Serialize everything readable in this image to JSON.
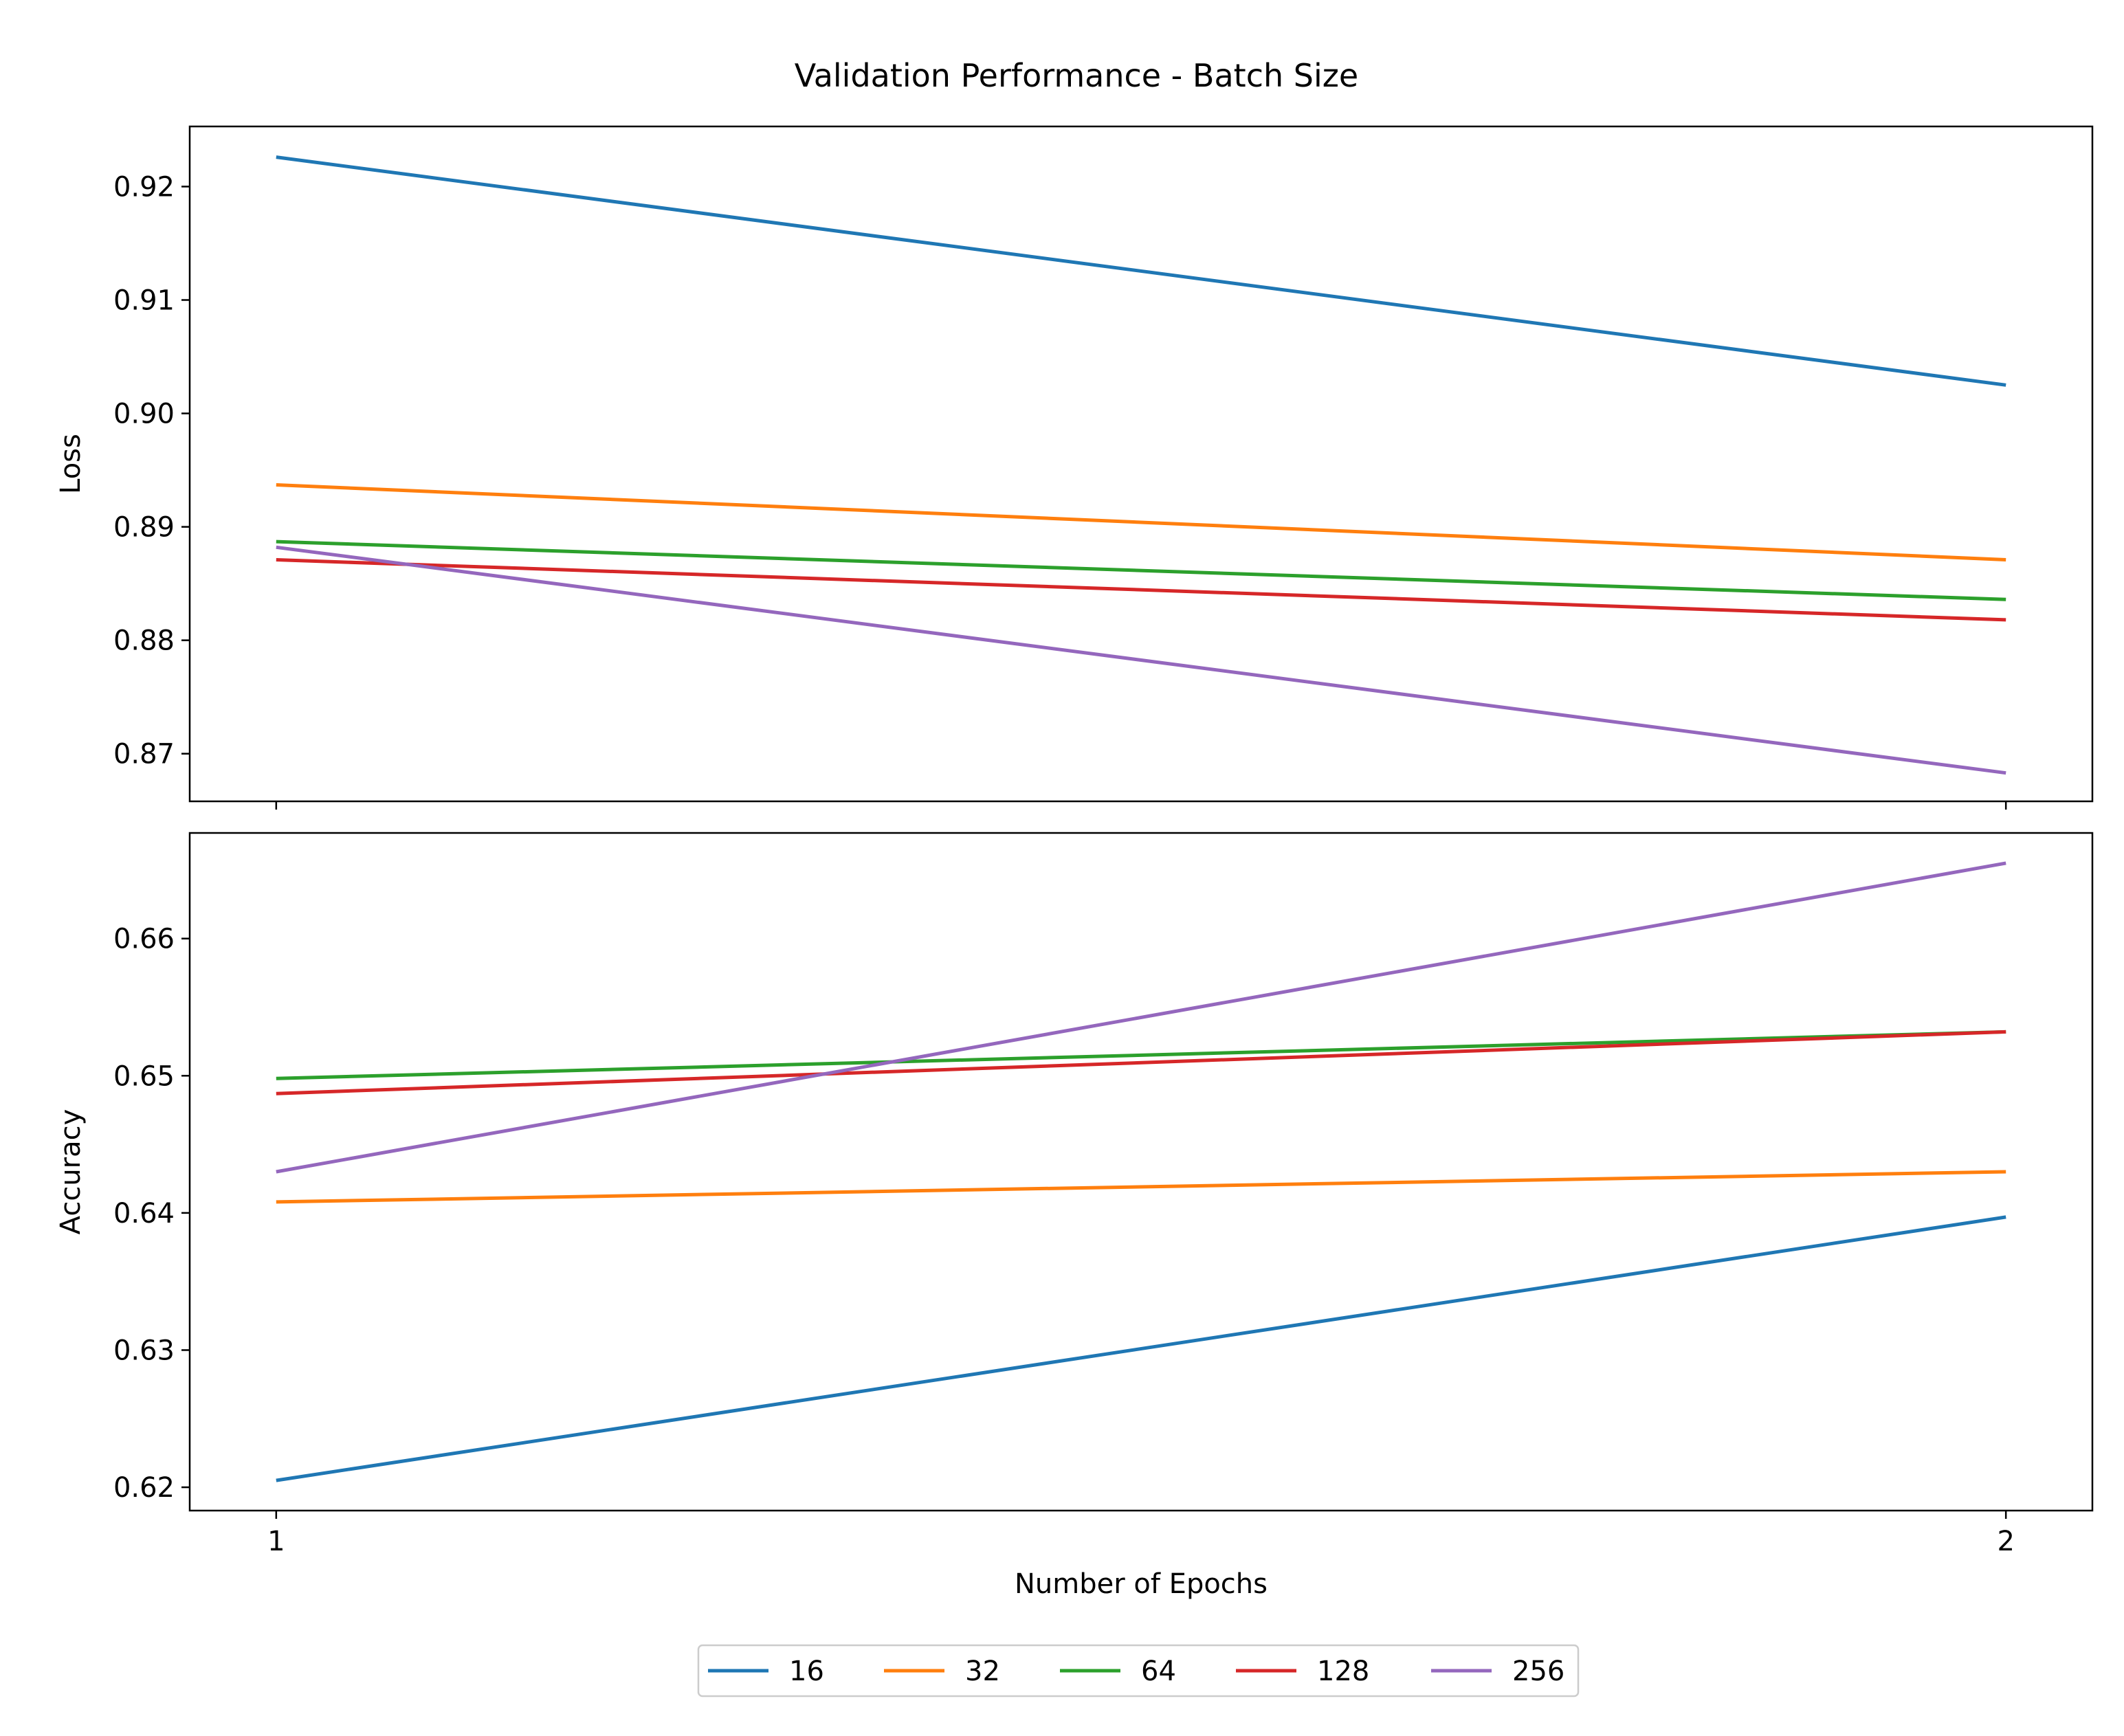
{
  "figure": {
    "title": "Validation Performance - Batch Size"
  },
  "colors": {
    "16": "#1f77b4",
    "32": "#ff7f0e",
    "64": "#2ca02c",
    "128": "#d62728",
    "256": "#9467bd"
  },
  "legend": {
    "placement": "bottom-center",
    "entries": [
      "16",
      "32",
      "64",
      "128",
      "256"
    ]
  },
  "chart_data": [
    {
      "type": "line",
      "title": "",
      "xlabel": "",
      "ylabel": "Loss",
      "x": [
        1,
        2
      ],
      "xticks": [
        1,
        2
      ],
      "xtick_labels": [],
      "xlim": [
        0.95,
        2.05
      ],
      "ylim": [
        0.8658,
        0.9253
      ],
      "yticks": [
        0.87,
        0.88,
        0.89,
        0.9,
        0.91,
        0.92
      ],
      "ytick_labels": [
        "0.87",
        "0.88",
        "0.89",
        "0.90",
        "0.91",
        "0.92"
      ],
      "grid": false,
      "series": [
        {
          "name": "16",
          "values": [
            0.9226,
            0.9025
          ]
        },
        {
          "name": "32",
          "values": [
            0.8937,
            0.8871
          ]
        },
        {
          "name": "64",
          "values": [
            0.8887,
            0.8836
          ]
        },
        {
          "name": "128",
          "values": [
            0.8871,
            0.8818
          ]
        },
        {
          "name": "256",
          "values": [
            0.8882,
            0.8683
          ]
        }
      ]
    },
    {
      "type": "line",
      "title": "",
      "xlabel": "Number of Epochs",
      "ylabel": "Accuracy",
      "x": [
        1,
        2
      ],
      "xticks": [
        1,
        2
      ],
      "xtick_labels": [
        "1",
        "2"
      ],
      "xlim": [
        0.95,
        2.05
      ],
      "ylim": [
        0.6183,
        0.6677
      ],
      "yticks": [
        0.62,
        0.63,
        0.64,
        0.65,
        0.66
      ],
      "ytick_labels": [
        "0.62",
        "0.63",
        "0.64",
        "0.65",
        "0.66"
      ],
      "grid": false,
      "series": [
        {
          "name": "16",
          "values": [
            0.6205,
            0.6397
          ]
        },
        {
          "name": "32",
          "values": [
            0.6408,
            0.643
          ]
        },
        {
          "name": "64",
          "values": [
            0.6498,
            0.6532
          ]
        },
        {
          "name": "128",
          "values": [
            0.6487,
            0.6532
          ]
        },
        {
          "name": "256",
          "values": [
            0.643,
            0.6655
          ]
        }
      ]
    }
  ]
}
